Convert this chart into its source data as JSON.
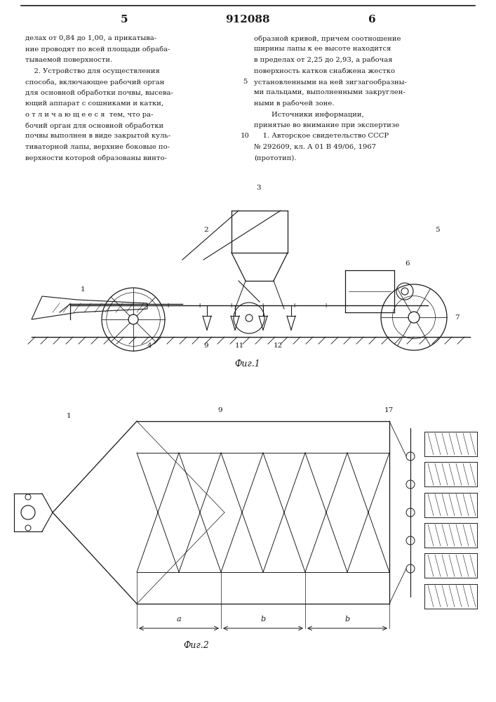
{
  "page_number_left": "5",
  "patent_number": "912088",
  "page_number_right": "6",
  "background_color": "#ffffff",
  "text_color": "#1a1a1a",
  "line_color": "#1a1a1a",
  "left_column_text": [
    "делах от 0,84 до 1,00, а прикатыва-",
    "ние проводят по всей площади обраба-",
    "тываемой поверхности.",
    "    2. Устройство для осуществления",
    "способа, включающее рабочий орган",
    "для основной обработки почвы, высева-",
    "ющий аппарат с сошниками и катки,",
    "о т л и ч а ю щ е е с я  тем, что ра-",
    "бочий орган для основной обработки",
    "почвы выполнен в виде закрытой куль-",
    "тиваторной лапы, верхние боковые по-",
    "верхности которой образованы винто-"
  ],
  "right_column_text": [
    "образной кривой, причем соотношение",
    "ширины лапы к ее высоте находится",
    "в пределах от 2,25 до 2,93, а рабочая",
    "поверхность катков снабжена жестко",
    "установленными на ней зигзагообразны-",
    "ми пальцами, выполненными закруглен-",
    "ными в рабочей зоне.",
    "        Источники информации,",
    "принятые во внимание при экспертизе",
    "    1. Авторское свидетельство СССР",
    "№ 292609, кл. А 01 В 49/06, 1967",
    "(прототип)."
  ],
  "fig1_label": "Фиг.1",
  "fig2_label": "Фиг.2"
}
